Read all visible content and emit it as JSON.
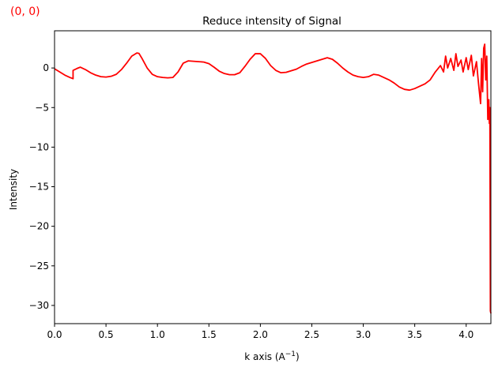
{
  "corner_label": "(0, 0)",
  "colors": {
    "series": "#ff0000",
    "axis": "#000000",
    "background": "#ffffff"
  },
  "chart_data": {
    "type": "line",
    "title": "Reduce intensity of  Signal",
    "xlabel": "k axis (A",
    "xlabel_sup": "−1",
    "xlabel_close": ")",
    "ylabel": "Intensity",
    "xlim": [
      0.0,
      4.24
    ],
    "ylim": [
      -32.3,
      4.7
    ],
    "grid": false,
    "legend": "none",
    "xticks": [
      0.0,
      0.5,
      1.0,
      1.5,
      2.0,
      2.5,
      3.0,
      3.5,
      4.0
    ],
    "xtick_labels": [
      "0.0",
      "0.5",
      "1.0",
      "1.5",
      "2.0",
      "2.5",
      "3.0",
      "3.5",
      "4.0"
    ],
    "yticks": [
      0,
      -5,
      -10,
      -15,
      -20,
      -25,
      -30
    ],
    "ytick_labels": [
      "0",
      "−5",
      "−10",
      "−15",
      "−20",
      "−25",
      "−30"
    ],
    "series": [
      {
        "name": "Signal",
        "x": [
          0.0,
          0.05,
          0.1,
          0.15,
          0.18,
          0.18,
          0.22,
          0.25,
          0.3,
          0.35,
          0.4,
          0.45,
          0.5,
          0.55,
          0.6,
          0.65,
          0.7,
          0.75,
          0.8,
          0.82,
          0.85,
          0.9,
          0.95,
          1.0,
          1.05,
          1.1,
          1.15,
          1.2,
          1.25,
          1.3,
          1.35,
          1.4,
          1.45,
          1.5,
          1.55,
          1.6,
          1.65,
          1.7,
          1.75,
          1.8,
          1.85,
          1.9,
          1.95,
          2.0,
          2.05,
          2.1,
          2.15,
          2.2,
          2.25,
          2.3,
          2.35,
          2.4,
          2.45,
          2.5,
          2.55,
          2.6,
          2.65,
          2.7,
          2.75,
          2.8,
          2.85,
          2.9,
          2.95,
          3.0,
          3.05,
          3.1,
          3.15,
          3.2,
          3.25,
          3.3,
          3.35,
          3.4,
          3.45,
          3.5,
          3.55,
          3.6,
          3.65,
          3.7,
          3.75,
          3.78,
          3.8,
          3.82,
          3.85,
          3.88,
          3.9,
          3.92,
          3.95,
          3.97,
          4.0,
          4.02,
          4.05,
          4.07,
          4.1,
          4.12,
          4.14,
          4.15,
          4.16,
          4.17,
          4.18,
          4.19,
          4.2,
          4.21,
          4.22,
          4.225,
          4.23,
          4.235,
          4.24
        ],
        "y": [
          -0.1,
          -0.5,
          -0.9,
          -1.2,
          -1.35,
          -0.3,
          -0.05,
          0.1,
          -0.2,
          -0.6,
          -0.9,
          -1.1,
          -1.15,
          -1.05,
          -0.8,
          -0.2,
          0.6,
          1.5,
          1.9,
          1.85,
          1.2,
          0.0,
          -0.8,
          -1.1,
          -1.2,
          -1.25,
          -1.2,
          -0.5,
          0.6,
          0.9,
          0.85,
          0.8,
          0.75,
          0.55,
          0.1,
          -0.4,
          -0.7,
          -0.85,
          -0.85,
          -0.6,
          0.2,
          1.1,
          1.8,
          1.8,
          1.2,
          0.3,
          -0.3,
          -0.6,
          -0.55,
          -0.35,
          -0.15,
          0.2,
          0.5,
          0.7,
          0.9,
          1.1,
          1.3,
          1.1,
          0.6,
          0.0,
          -0.5,
          -0.9,
          -1.1,
          -1.2,
          -1.1,
          -0.8,
          -0.9,
          -1.2,
          -1.5,
          -1.9,
          -2.4,
          -2.7,
          -2.8,
          -2.6,
          -2.3,
          -2.0,
          -1.5,
          -0.5,
          0.3,
          -0.5,
          1.5,
          0.0,
          1.2,
          -0.3,
          1.8,
          0.2,
          1.0,
          -0.5,
          1.3,
          -0.2,
          1.6,
          -1.0,
          0.8,
          -2.0,
          -4.5,
          1.2,
          -3.0,
          2.5,
          3.0,
          -1.5,
          1.5,
          -6.5,
          -4.0,
          -7.0,
          -5.0,
          -30.7,
          -31.0
        ]
      }
    ]
  }
}
